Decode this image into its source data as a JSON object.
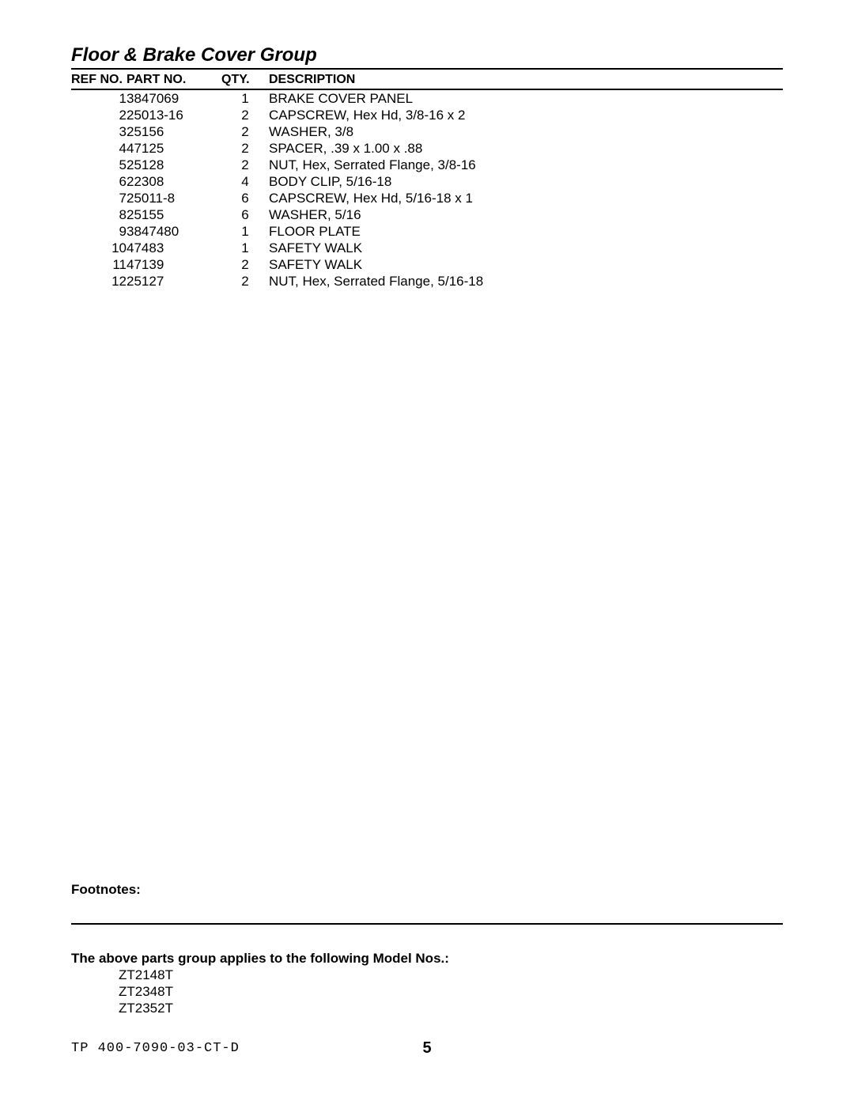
{
  "title": "Floor & Brake Cover Group",
  "columns": {
    "ref": "REF NO.",
    "part": "PART NO.",
    "qty": "QTY.",
    "desc": "DESCRIPTION"
  },
  "rows": [
    {
      "ref": "1",
      "part": "3847069",
      "qty": "1",
      "desc": "BRAKE COVER PANEL"
    },
    {
      "ref": "2",
      "part": "25013-16",
      "qty": "2",
      "desc": "CAPSCREW, Hex Hd, 3/8-16 x 2"
    },
    {
      "ref": "3",
      "part": "25156",
      "qty": "2",
      "desc": "WASHER, 3/8"
    },
    {
      "ref": "4",
      "part": "47125",
      "qty": "2",
      "desc": "SPACER, .39 x 1.00 x .88"
    },
    {
      "ref": "5",
      "part": "25128",
      "qty": "2",
      "desc": "NUT, Hex, Serrated Flange, 3/8-16"
    },
    {
      "ref": "6",
      "part": "22308",
      "qty": "4",
      "desc": "BODY CLIP, 5/16-18"
    },
    {
      "ref": "7",
      "part": "25011-8",
      "qty": "6",
      "desc": "CAPSCREW, Hex Hd, 5/16-18 x 1"
    },
    {
      "ref": "8",
      "part": "25155",
      "qty": "6",
      "desc": "WASHER, 5/16"
    },
    {
      "ref": "9",
      "part": "3847480",
      "qty": "1",
      "desc": "FLOOR PLATE"
    },
    {
      "ref": "10",
      "part": "47483",
      "qty": "1",
      "desc": "SAFETY WALK"
    },
    {
      "ref": "11",
      "part": "47139",
      "qty": "2",
      "desc": "SAFETY WALK"
    },
    {
      "ref": "12",
      "part": "25127",
      "qty": "2",
      "desc": "NUT, Hex, Serrated Flange, 5/16-18"
    }
  ],
  "footnotes_label": "Footnotes:",
  "models_title": "The above parts group applies to the following Model Nos.:",
  "models": [
    "ZT2148T",
    "ZT2348T",
    "ZT2352T"
  ],
  "doc_code": "TP 400-7090-03-CT-D",
  "page_number": "5"
}
